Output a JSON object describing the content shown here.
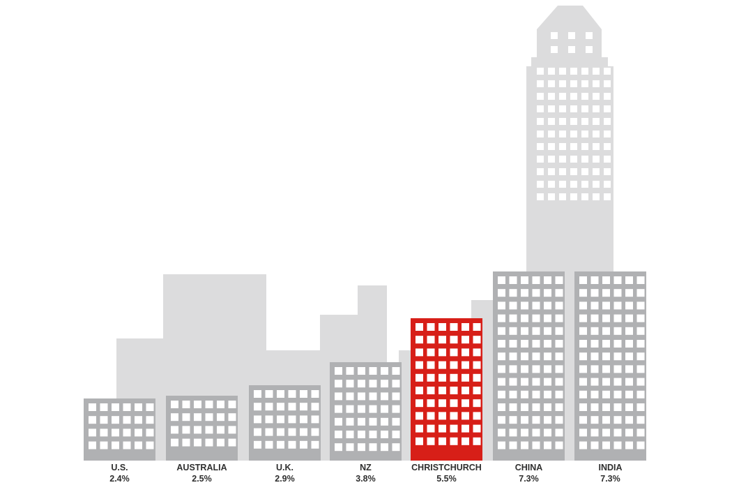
{
  "chart_data": {
    "type": "bar",
    "categories": [
      "U.S.",
      "AUSTRALIA",
      "U.K.",
      "NZ",
      "CHRISTCHURCH",
      "CHINA",
      "INDIA"
    ],
    "values": [
      2.4,
      2.5,
      2.9,
      3.8,
      5.5,
      7.3,
      7.3
    ],
    "value_labels": [
      "2.4%",
      "2.5%",
      "2.9%",
      "3.8%",
      "5.5%",
      "7.3%",
      "7.3%"
    ],
    "highlight": "CHRISTCHURCH",
    "unit": "%",
    "title": "",
    "xlabel": "",
    "ylabel": "",
    "ylim": [
      0,
      7.3
    ],
    "grid": false,
    "legend": "none"
  },
  "colors": {
    "bar": "#b0b1b3",
    "highlight": "#d71f18",
    "background_buildings": "#dcdcdd",
    "windows": "#ffffff",
    "label_text": "#2f2f2f"
  }
}
